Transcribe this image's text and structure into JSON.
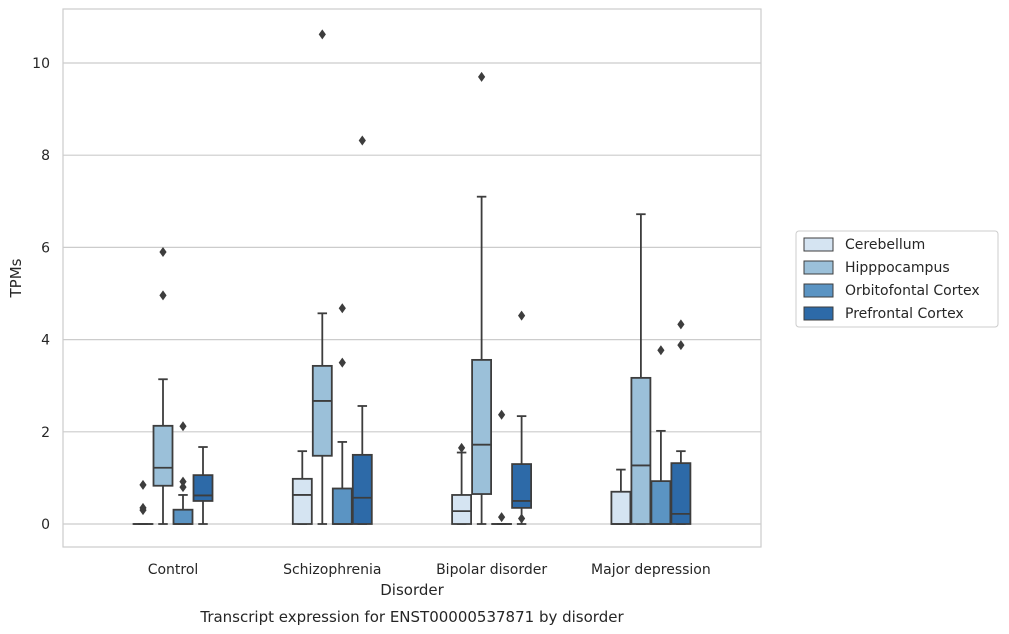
{
  "caption": "Transcript expression for ENST00000537871 by disorder",
  "chart_data": {
    "type": "box",
    "xlabel": "Disorder",
    "ylabel": "TPMs",
    "ylim": [
      -0.5,
      11.15
    ],
    "yticks": [
      0,
      2,
      4,
      6,
      8,
      10
    ],
    "grid": "horizontal",
    "legend_position": "right",
    "categories": [
      "Control",
      "Schizophrenia",
      "Bipolar disorder",
      "Major depression"
    ],
    "series": [
      {
        "name": "Cerebellum",
        "color": "#d5e4f2",
        "boxes": [
          {
            "whislo": 0,
            "q1": 0,
            "med": 0,
            "q3": 0,
            "whishi": 0,
            "fliers": [
              0.85,
              0.35,
              0.3
            ]
          },
          {
            "whislo": 0,
            "q1": 0,
            "med": 0.63,
            "q3": 0.98,
            "whishi": 1.58,
            "fliers": []
          },
          {
            "whislo": 0,
            "q1": 0,
            "med": 0.28,
            "q3": 0.63,
            "whishi": 1.55,
            "fliers": [
              1.65
            ]
          },
          {
            "whislo": 0,
            "q1": 0,
            "med": 0,
            "q3": 0.7,
            "whishi": 1.18,
            "fliers": []
          }
        ]
      },
      {
        "name": "Hipppocampus",
        "color": "#9bc0d9",
        "boxes": [
          {
            "whislo": 0,
            "q1": 0.83,
            "med": 1.22,
            "q3": 2.13,
            "whishi": 3.14,
            "fliers": [
              5.9,
              4.96
            ]
          },
          {
            "whislo": 0,
            "q1": 1.48,
            "med": 2.67,
            "q3": 3.43,
            "whishi": 4.57,
            "fliers": [
              10.62
            ]
          },
          {
            "whislo": 0,
            "q1": 0.65,
            "med": 1.72,
            "q3": 3.56,
            "whishi": 7.1,
            "fliers": [
              9.7
            ]
          },
          {
            "whislo": 0,
            "q1": 0,
            "med": 1.27,
            "q3": 3.17,
            "whishi": 6.72,
            "fliers": []
          }
        ]
      },
      {
        "name": "Orbitofontal Cortex",
        "color": "#5b94c3",
        "boxes": [
          {
            "whislo": 0,
            "q1": 0,
            "med": 0,
            "q3": 0.31,
            "whishi": 0.63,
            "fliers": [
              2.12,
              0.92,
              0.8
            ]
          },
          {
            "whislo": 0,
            "q1": 0,
            "med": 0,
            "q3": 0.77,
            "whishi": 1.78,
            "fliers": [
              4.68,
              3.5
            ]
          },
          {
            "whislo": 0,
            "q1": 0,
            "med": 0,
            "q3": 0,
            "whishi": 0,
            "fliers": [
              2.37,
              0.15
            ]
          },
          {
            "whislo": 0,
            "q1": 0,
            "med": 0,
            "q3": 0.93,
            "whishi": 2.02,
            "fliers": [
              3.77
            ]
          }
        ]
      },
      {
        "name": "Prefrontal Cortex",
        "color": "#2d6aa8",
        "boxes": [
          {
            "whislo": 0,
            "q1": 0.5,
            "med": 0.62,
            "q3": 1.06,
            "whishi": 1.67,
            "fliers": []
          },
          {
            "whislo": 0,
            "q1": 0,
            "med": 0.57,
            "q3": 1.5,
            "whishi": 2.56,
            "fliers": [
              8.32
            ]
          },
          {
            "whislo": 0,
            "q1": 0.35,
            "med": 0.5,
            "q3": 1.3,
            "whishi": 2.34,
            "fliers": [
              4.52,
              0.12
            ]
          },
          {
            "whislo": 0,
            "q1": 0,
            "med": 0.22,
            "q3": 1.32,
            "whishi": 1.58,
            "fliers": [
              4.33,
              3.88
            ]
          }
        ]
      }
    ]
  }
}
